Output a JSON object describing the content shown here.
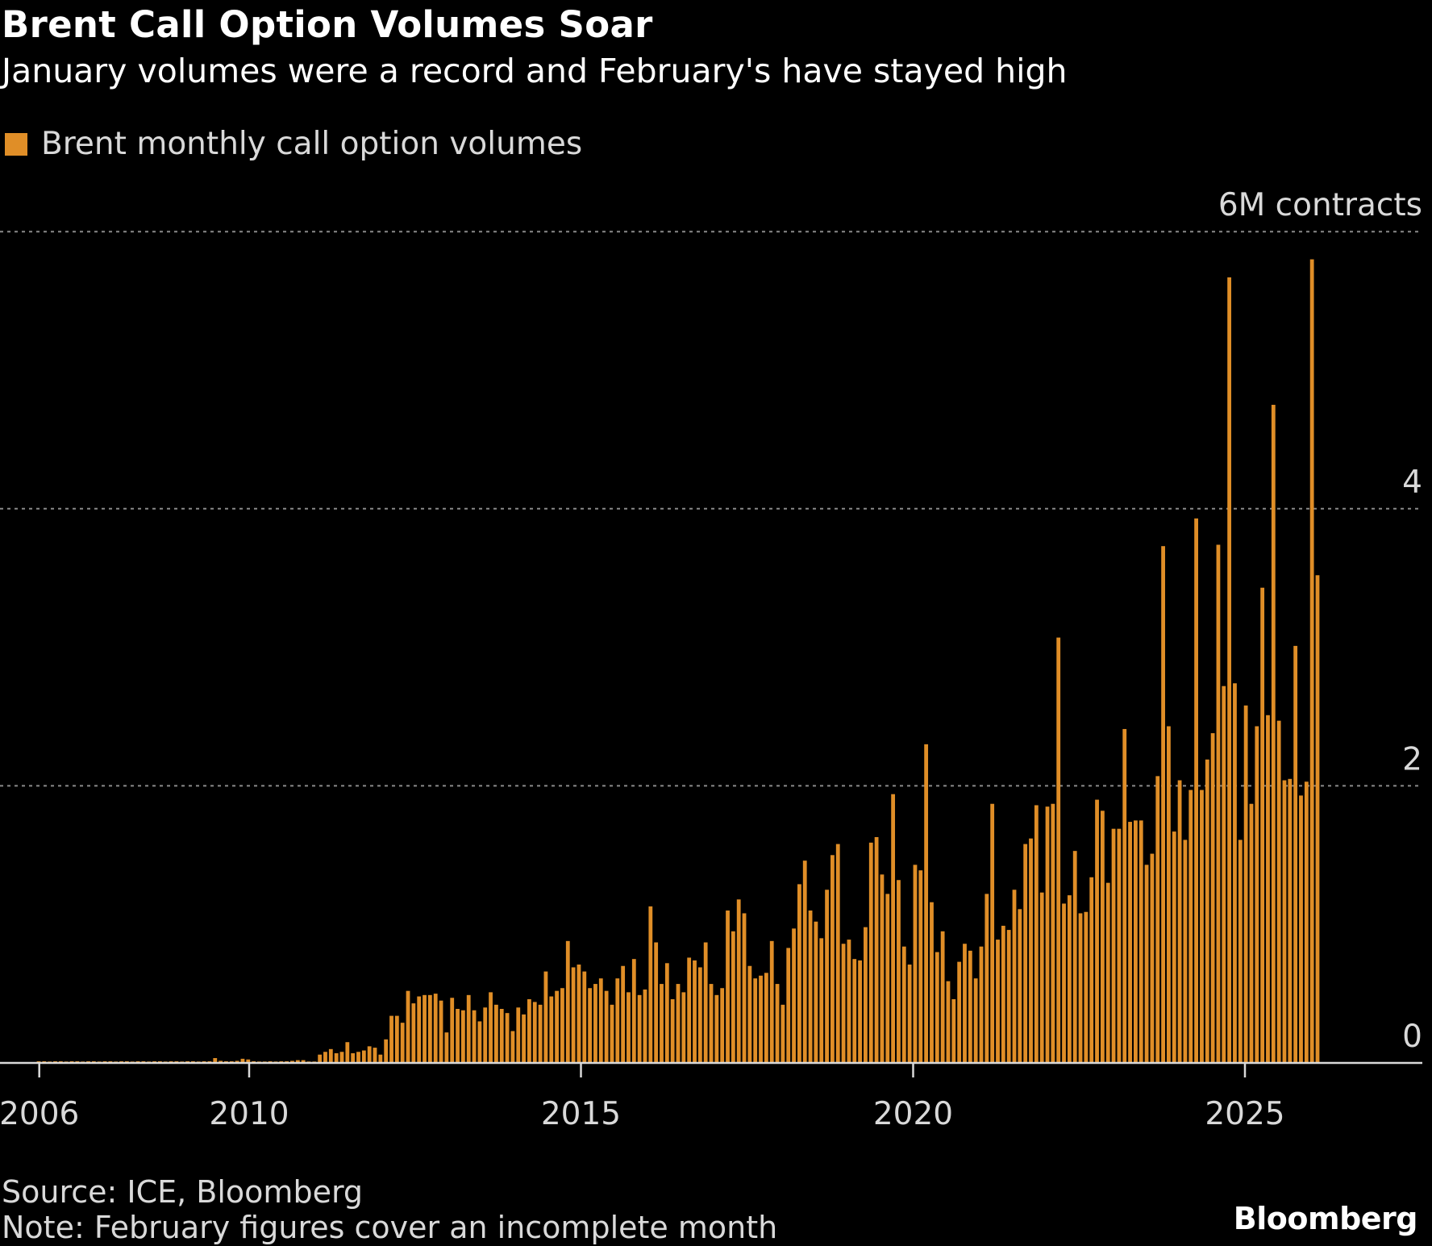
{
  "title": "Brent Call Option Volumes Soar",
  "subtitle": "January volumes were a record and February's have stayed high",
  "legend": {
    "label": "Brent monthly call option volumes",
    "color": "#E08E27"
  },
  "source": "Source: ICE, Bloomberg",
  "note": "Note: February figures cover an incomplete month",
  "logo": "Bloomberg",
  "colors": {
    "bar": "#E08E27",
    "axis": "#d9d9d9",
    "grid": "#8a8a8a",
    "background": "#000000"
  },
  "chart_data": {
    "type": "bar",
    "title": "Brent Call Option Volumes Soar",
    "subtitle": "January volumes were a record and February's have stayed high",
    "xlabel": "",
    "ylabel": "6M contracts",
    "units": "million contracts",
    "frequency": "monthly",
    "start": "2006-10",
    "end": "2026-02",
    "ylim": [
      0,
      6
    ],
    "yticks": [
      {
        "value": 0,
        "label": "0"
      },
      {
        "value": 2,
        "label": "2"
      },
      {
        "value": 4,
        "label": "4"
      },
      {
        "value": 6,
        "label": "6M contracts"
      }
    ],
    "xticks": [
      "2006",
      "2010",
      "2015",
      "2020",
      "2025"
    ],
    "grid": true,
    "legend_position": "top-left",
    "series": [
      {
        "name": "Brent monthly call option volumes",
        "values": [
          0.012,
          0.012,
          0.01,
          0.012,
          0.012,
          0.01,
          0.012,
          0.012,
          0.01,
          0.012,
          0.012,
          0.01,
          0.012,
          0.012,
          0.01,
          0.012,
          0.012,
          0.01,
          0.012,
          0.012,
          0.01,
          0.012,
          0.012,
          0.01,
          0.012,
          0.012,
          0.01,
          0.012,
          0.012,
          0.01,
          0.012,
          0.012,
          0.035,
          0.015,
          0.012,
          0.012,
          0.015,
          0.03,
          0.025,
          0.012,
          0.01,
          0.01,
          0.012,
          0.01,
          0.012,
          0.012,
          0.015,
          0.02,
          0.02,
          0.01,
          0.01,
          0.06,
          0.08,
          0.1,
          0.07,
          0.08,
          0.15,
          0.07,
          0.08,
          0.09,
          0.12,
          0.11,
          0.06,
          0.17,
          0.34,
          0.34,
          0.29,
          0.52,
          0.43,
          0.48,
          0.49,
          0.49,
          0.5,
          0.45,
          0.22,
          0.47,
          0.39,
          0.38,
          0.49,
          0.38,
          0.3,
          0.4,
          0.51,
          0.42,
          0.39,
          0.36,
          0.23,
          0.4,
          0.35,
          0.46,
          0.44,
          0.42,
          0.66,
          0.48,
          0.52,
          0.54,
          0.88,
          0.69,
          0.71,
          0.66,
          0.54,
          0.57,
          0.61,
          0.52,
          0.42,
          0.61,
          0.7,
          0.51,
          0.75,
          0.49,
          0.53,
          1.13,
          0.87,
          0.57,
          0.72,
          0.46,
          0.57,
          0.51,
          0.76,
          0.74,
          0.69,
          0.87,
          0.57,
          0.49,
          0.54,
          1.1,
          0.95,
          1.18,
          1.08,
          0.7,
          0.61,
          0.63,
          0.65,
          0.88,
          0.57,
          0.42,
          0.83,
          0.97,
          1.29,
          1.46,
          1.1,
          1.02,
          0.9,
          1.25,
          1.5,
          1.58,
          0.86,
          0.89,
          0.75,
          0.74,
          0.98,
          1.59,
          1.63,
          1.36,
          1.22,
          1.94,
          1.32,
          0.84,
          0.71,
          1.43,
          1.39,
          2.3,
          1.16,
          0.8,
          0.95,
          0.59,
          0.46,
          0.73,
          0.86,
          0.81,
          0.61,
          0.84,
          1.22,
          1.87,
          0.89,
          0.99,
          0.96,
          1.25,
          1.11,
          1.58,
          1.62,
          1.86,
          1.23,
          1.85,
          1.87,
          3.07,
          1.15,
          1.21,
          1.53,
          1.08,
          1.09,
          1.34,
          1.9,
          1.82,
          1.3,
          1.69,
          1.69,
          2.41,
          1.74,
          1.75,
          1.75,
          1.43,
          1.51,
          2.07,
          3.73,
          2.43,
          1.67,
          2.04,
          1.61,
          1.97,
          3.93,
          1.97,
          2.19,
          2.38,
          3.74,
          2.72,
          5.67,
          2.74,
          1.61,
          2.58,
          1.87,
          2.43,
          3.43,
          2.51,
          4.75,
          2.47,
          2.04,
          2.05,
          3.01,
          1.93,
          2.03,
          5.8,
          3.52
        ]
      }
    ]
  }
}
